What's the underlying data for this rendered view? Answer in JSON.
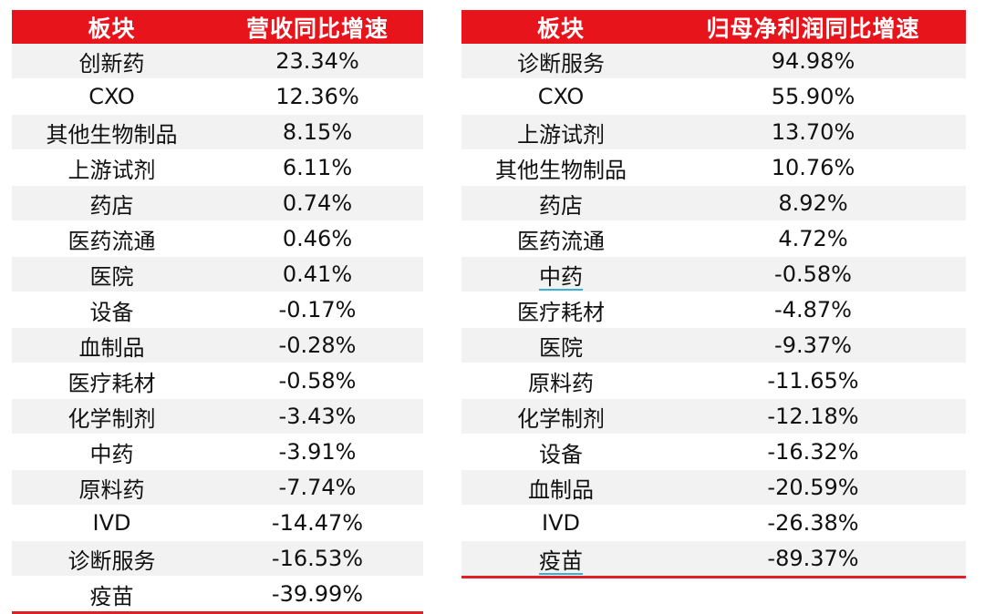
{
  "colors": {
    "header_bg": "#e8141c",
    "header_text": "#ffffff",
    "stripe": "#f2f2f2",
    "bottom_rule": "#e02027",
    "spellcheck_underline": "#38b0d8"
  },
  "left_table": {
    "headers": [
      "板块",
      "营收同比增速"
    ],
    "rows": [
      [
        "创新药",
        "23.34%"
      ],
      [
        "CXO",
        "12.36%"
      ],
      [
        "其他生物制品",
        "8.15%"
      ],
      [
        "上游试剂",
        "6.11%"
      ],
      [
        "药店",
        "0.74%"
      ],
      [
        "医药流通",
        "0.46%"
      ],
      [
        "医院",
        "0.41%"
      ],
      [
        "设备",
        "-0.17%"
      ],
      [
        "血制品",
        "-0.28%"
      ],
      [
        "医疗耗材",
        "-0.58%"
      ],
      [
        "化学制剂",
        "-3.43%"
      ],
      [
        "中药",
        "-3.91%"
      ],
      [
        "原料药",
        "-7.74%"
      ],
      [
        "IVD",
        "-14.47%"
      ],
      [
        "诊断服务",
        "-16.53%"
      ],
      [
        "疫苗",
        "-39.99%"
      ]
    ]
  },
  "right_table": {
    "headers": [
      "板块",
      "归母净利润同比增速"
    ],
    "rows": [
      [
        "诊断服务",
        "94.98%"
      ],
      [
        "CXO",
        "55.90%"
      ],
      [
        "上游试剂",
        "13.70%"
      ],
      [
        "其他生物制品",
        "10.76%"
      ],
      [
        "药店",
        "8.92%"
      ],
      [
        "医药流通",
        "4.72%"
      ],
      [
        "中药",
        "-0.58%"
      ],
      [
        "医疗耗材",
        "-4.87%"
      ],
      [
        "医院",
        "-9.37%"
      ],
      [
        "原料药",
        "-11.65%"
      ],
      [
        "化学制剂",
        "-12.18%"
      ],
      [
        "设备",
        "-16.32%"
      ],
      [
        "血制品",
        "-20.59%"
      ],
      [
        "IVD",
        "-26.38%"
      ],
      [
        "疫苗",
        "-89.37%"
      ]
    ]
  }
}
